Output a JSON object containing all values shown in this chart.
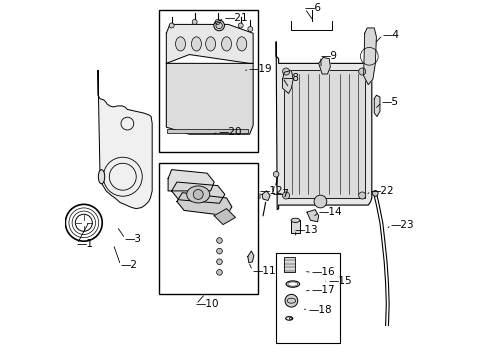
{
  "bg": "#ffffff",
  "lc": "#000000",
  "fs": 7.5,
  "boxes": {
    "valve_cover": [
      0.265,
      0.025,
      0.545,
      0.425
    ],
    "oil_pump": [
      0.265,
      0.455,
      0.545,
      0.825
    ],
    "filter": [
      0.595,
      0.71,
      0.775,
      0.965
    ]
  },
  "labels": {
    "1": [
      0.032,
      0.685,
      0.068,
      0.62
    ],
    "2": [
      0.155,
      0.745,
      0.135,
      0.685
    ],
    "3": [
      0.168,
      0.67,
      0.145,
      0.635
    ],
    "4": [
      0.895,
      0.095,
      0.872,
      0.12
    ],
    "5": [
      0.892,
      0.285,
      0.873,
      0.305
    ],
    "6": [
      0.675,
      0.02,
      0.7,
      0.055
    ],
    "7": [
      0.584,
      0.545,
      0.591,
      0.515
    ],
    "8": [
      0.612,
      0.215,
      0.632,
      0.245
    ],
    "9": [
      0.72,
      0.155,
      0.722,
      0.19
    ],
    "10": [
      0.368,
      0.855,
      0.395,
      0.825
    ],
    "11": [
      0.527,
      0.76,
      0.517,
      0.735
    ],
    "12": [
      0.549,
      0.535,
      0.549,
      0.565
    ],
    "13": [
      0.648,
      0.645,
      0.651,
      0.668
    ],
    "14": [
      0.715,
      0.595,
      0.698,
      0.61
    ],
    "15": [
      0.742,
      0.79,
      0.735,
      0.79
    ],
    "16": [
      0.695,
      0.765,
      0.673,
      0.762
    ],
    "17": [
      0.695,
      0.815,
      0.673,
      0.818
    ],
    "18": [
      0.685,
      0.87,
      0.667,
      0.868
    ],
    "19": [
      0.518,
      0.19,
      0.509,
      0.195
    ],
    "20": [
      0.432,
      0.37,
      0.412,
      0.375
    ],
    "21": [
      0.448,
      0.048,
      0.416,
      0.062
    ],
    "22": [
      0.862,
      0.535,
      0.848,
      0.548
    ],
    "23": [
      0.918,
      0.63,
      0.906,
      0.645
    ]
  }
}
